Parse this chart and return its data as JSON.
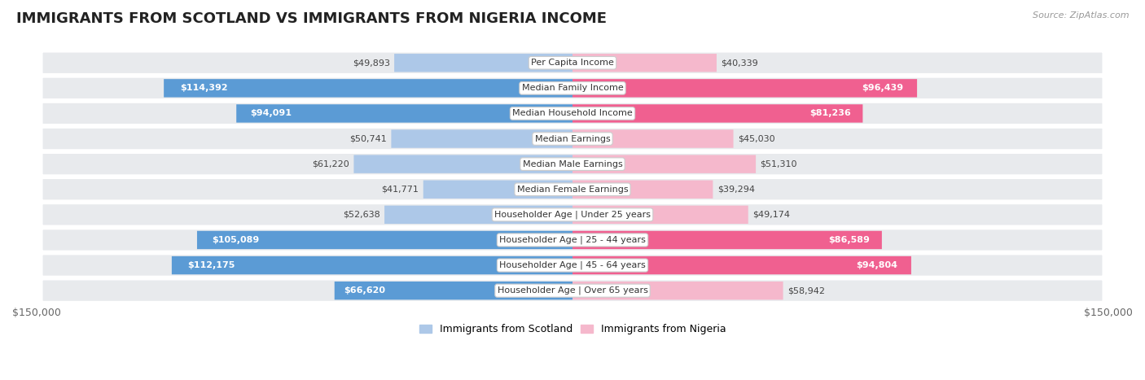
{
  "title": "IMMIGRANTS FROM SCOTLAND VS IMMIGRANTS FROM NIGERIA INCOME",
  "source": "Source: ZipAtlas.com",
  "categories": [
    "Per Capita Income",
    "Median Family Income",
    "Median Household Income",
    "Median Earnings",
    "Median Male Earnings",
    "Median Female Earnings",
    "Householder Age | Under 25 years",
    "Householder Age | 25 - 44 years",
    "Householder Age | 45 - 64 years",
    "Householder Age | Over 65 years"
  ],
  "scotland_values": [
    49893,
    114392,
    94091,
    50741,
    61220,
    41771,
    52638,
    105089,
    112175,
    66620
  ],
  "nigeria_values": [
    40339,
    96439,
    81236,
    45030,
    51310,
    39294,
    49174,
    86589,
    94804,
    58942
  ],
  "scotland_labels": [
    "$49,893",
    "$114,392",
    "$94,091",
    "$50,741",
    "$61,220",
    "$41,771",
    "$52,638",
    "$105,089",
    "$112,175",
    "$66,620"
  ],
  "nigeria_labels": [
    "$40,339",
    "$96,439",
    "$81,236",
    "$45,030",
    "$51,310",
    "$39,294",
    "$49,174",
    "$86,589",
    "$94,804",
    "$58,942"
  ],
  "scotland_color_light": "#adc8e8",
  "scotland_color_dark": "#5b9bd5",
  "nigeria_color_light": "#f5b8cc",
  "nigeria_color_dark": "#f06090",
  "max_value": 150000,
  "bar_height": 0.72,
  "row_bg_color": "#e8eaed",
  "background_color": "#ffffff",
  "legend_scotland": "Immigrants from Scotland",
  "legend_nigeria": "Immigrants from Nigeria",
  "scotland_inside_threshold": 65000,
  "nigeria_inside_threshold": 65000,
  "title_fontsize": 13,
  "source_fontsize": 8,
  "label_fontsize": 8,
  "cat_fontsize": 8
}
